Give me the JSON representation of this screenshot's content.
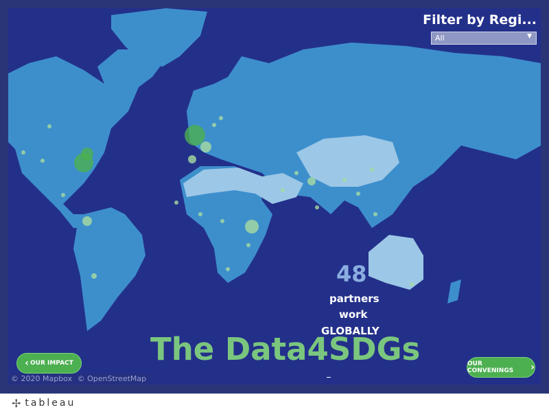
{
  "filter": {
    "title": "Filter by Regi...",
    "selected": "All"
  },
  "stats": {
    "count": "48",
    "line1": "partners",
    "line2": "work",
    "line3": "GLOBALLY"
  },
  "title": "The Data4SDGs",
  "buttons": {
    "impact": "OUR IMPACT",
    "convenings": "OUR CONVENINGS"
  },
  "attribution": {
    "mapbox": "© 2020 Mapbox",
    "osm": "© OpenStreetMap"
  },
  "footer": {
    "brand": "tableau"
  },
  "colors": {
    "ocean": "#23308a",
    "land": "#3d8fcc",
    "highlight_land": "#9cc7e6",
    "accent_green": "#4caf50",
    "title_green": "#7bc67e"
  },
  "icons": {
    "left": "chevron-left-icon",
    "right": "chevron-right-icon",
    "logo": "tableau-logo-icon"
  }
}
